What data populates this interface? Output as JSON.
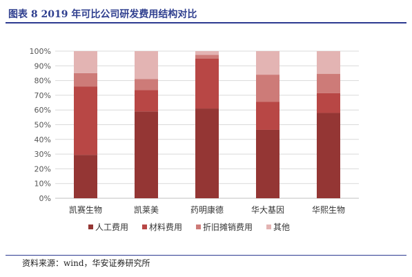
{
  "title": "图表 8 2019 年可比公司研发费用结构对比",
  "source": "资料来源：wind，华安证券研究所",
  "chart_data": {
    "type": "bar",
    "stacked": true,
    "percent": true,
    "categories": [
      "凯赛生物",
      "凯莱美",
      "药明康德",
      "华大基因",
      "华熙生物"
    ],
    "y_ticks": [
      "0%",
      "10%",
      "20%",
      "30%",
      "40%",
      "50%",
      "60%",
      "70%",
      "80%",
      "90%",
      "100%"
    ],
    "ylim": [
      0,
      100
    ],
    "grid": true,
    "legend_position": "bottom",
    "series": [
      {
        "name": "人工费用",
        "color": "#943634",
        "values": [
          29.5,
          59,
          61,
          46.5,
          58
        ]
      },
      {
        "name": "材料费用",
        "color": "#b84745",
        "values": [
          46.5,
          14.5,
          34,
          19,
          13.5
        ]
      },
      {
        "name": "折旧摊销费用",
        "color": "#cd7b78",
        "values": [
          9,
          7.5,
          2.5,
          18.5,
          13
        ]
      },
      {
        "name": "其他",
        "color": "#e3b4b3",
        "values": [
          15,
          19,
          2.5,
          16,
          15.5
        ]
      }
    ]
  }
}
